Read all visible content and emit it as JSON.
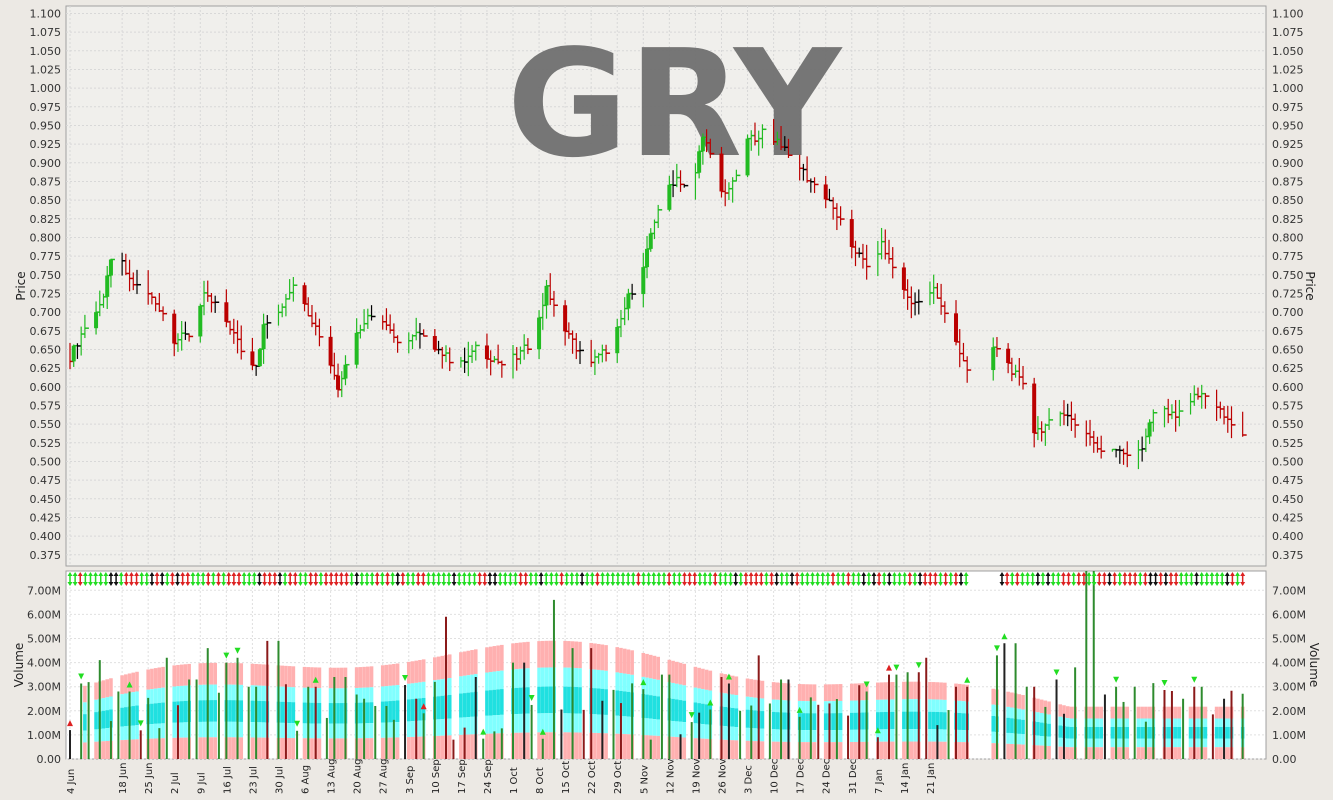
{
  "chart_data": [
    {
      "type": "ohlc",
      "title": "GRY",
      "ylabel": "Price",
      "ylim": [
        0.36,
        1.11
      ],
      "yticks": [
        "0.375",
        "0.400",
        "0.425",
        "0.450",
        "0.475",
        "0.500",
        "0.525",
        "0.550",
        "0.575",
        "0.600",
        "0.625",
        "0.650",
        "0.675",
        "0.700",
        "0.725",
        "0.750",
        "0.775",
        "0.800",
        "0.825",
        "0.850",
        "0.875",
        "0.900",
        "0.925",
        "0.950",
        "0.975",
        "1.000",
        "1.025",
        "1.050",
        "1.075",
        "1.100"
      ],
      "grid": true,
      "close_path": [
        [
          0,
          0.64
        ],
        [
          4,
          0.68
        ],
        [
          9,
          0.72
        ],
        [
          12,
          0.79
        ],
        [
          16,
          0.74
        ],
        [
          20,
          0.73
        ],
        [
          25,
          0.7
        ],
        [
          27,
          0.66
        ],
        [
          32,
          0.67
        ],
        [
          36,
          0.72
        ],
        [
          39,
          0.71
        ],
        [
          43,
          0.68
        ],
        [
          47,
          0.64
        ],
        [
          50,
          0.63
        ],
        [
          52,
          0.68
        ],
        [
          56,
          0.7
        ],
        [
          61,
          0.75
        ],
        [
          64,
          0.7
        ],
        [
          68,
          0.66
        ],
        [
          72,
          0.6
        ],
        [
          75,
          0.65
        ],
        [
          79,
          0.69
        ],
        [
          83,
          0.7
        ],
        [
          88,
          0.66
        ],
        [
          93,
          0.67
        ],
        [
          97,
          0.66
        ],
        [
          101,
          0.64
        ],
        [
          105,
          0.63
        ],
        [
          109,
          0.65
        ],
        [
          113,
          0.64
        ],
        [
          116,
          0.63
        ],
        [
          120,
          0.64
        ],
        [
          124,
          0.66
        ],
        [
          128,
          0.73
        ],
        [
          131,
          0.7
        ],
        [
          135,
          0.66
        ],
        [
          139,
          0.63
        ],
        [
          142,
          0.64
        ],
        [
          146,
          0.66
        ],
        [
          150,
          0.72
        ],
        [
          154,
          0.76
        ],
        [
          159,
          0.86
        ],
        [
          163,
          0.88
        ],
        [
          167,
          0.86
        ],
        [
          170,
          0.94
        ],
        [
          175,
          0.86
        ],
        [
          178,
          0.87
        ],
        [
          182,
          0.93
        ],
        [
          186,
          0.94
        ],
        [
          190,
          0.93
        ],
        [
          194,
          0.91
        ],
        [
          198,
          0.88
        ],
        [
          202,
          0.86
        ],
        [
          206,
          0.83
        ],
        [
          210,
          0.79
        ],
        [
          214,
          0.76
        ],
        [
          218,
          0.79
        ],
        [
          221,
          0.76
        ],
        [
          225,
          0.72
        ],
        [
          228,
          0.71
        ],
        [
          232,
          0.73
        ],
        [
          234,
          0.71
        ],
        [
          241,
          0.62
        ],
        [
          245,
          0.66
        ],
        [
          249,
          0.65
        ],
        [
          252,
          0.63
        ],
        [
          256,
          0.6
        ],
        [
          259,
          0.54
        ],
        [
          263,
          0.55
        ],
        [
          266,
          0.57
        ],
        [
          270,
          0.55
        ],
        [
          273,
          0.54
        ],
        [
          277,
          0.51
        ],
        [
          281,
          0.52
        ],
        [
          284,
          0.51
        ],
        [
          288,
          0.52
        ],
        [
          292,
          0.58
        ],
        [
          296,
          0.56
        ],
        [
          300,
          0.58
        ],
        [
          304,
          0.59
        ],
        [
          308,
          0.57
        ],
        [
          312,
          0.55
        ],
        [
          315,
          0.53
        ]
      ],
      "x_tick_labels": [
        "4 Jun",
        "18 Jun",
        "25 Jun",
        "2 Jul",
        "9 Jul",
        "16 Jul",
        "23 Jul",
        "30 Jul",
        "6 Aug",
        "13 Aug",
        "20 Aug",
        "27 Aug",
        "3 Sep",
        "10 Sep",
        "17 Sep",
        "24 Sep",
        "1 Oct",
        "8 Oct",
        "15 Oct",
        "22 Oct",
        "29 Oct",
        "5 Nov",
        "12 Nov",
        "19 Nov",
        "26 Nov",
        "3 Dec",
        "10 Dec",
        "17 Dec",
        "24 Dec",
        "31 Dec",
        "7 Jan",
        "14 Jan",
        "21 Jan"
      ],
      "x_tick_days": [
        0,
        14,
        21,
        28,
        35,
        42,
        49,
        56,
        63,
        70,
        77,
        84,
        91,
        98,
        105,
        112,
        119,
        126,
        133,
        140,
        147,
        154,
        161,
        168,
        175,
        182,
        189,
        196,
        203,
        210,
        217,
        224,
        231
      ],
      "colors": {
        "up": "#22bb22",
        "down": "#bb0000",
        "flat": "#000000",
        "watermark": "#707070"
      }
    },
    {
      "type": "bar",
      "ylabel": "Volume",
      "ylim": [
        0,
        7.8
      ],
      "yticks": [
        "0.00",
        "1.00M",
        "2.00M",
        "3.00M",
        "4.00M",
        "5.00M",
        "6.00M",
        "7.00M"
      ],
      "grid": true,
      "volume_peaks_millions": [
        [
          0,
          1.2
        ],
        [
          7,
          2.0
        ],
        [
          12,
          4.1
        ],
        [
          20,
          2.8
        ],
        [
          30,
          2.2
        ],
        [
          36,
          4.2
        ],
        [
          45,
          3.3
        ],
        [
          50,
          4.6
        ],
        [
          58,
          4.0
        ],
        [
          62,
          4.2
        ],
        [
          68,
          3.0
        ],
        [
          75,
          4.9
        ],
        [
          80,
          3.1
        ],
        [
          90,
          3.0
        ],
        [
          100,
          3.4
        ],
        [
          108,
          2.5
        ],
        [
          115,
          2.2
        ],
        [
          127,
          2.5
        ],
        [
          134,
          3.2
        ],
        [
          138,
          5.9
        ],
        [
          150,
          3.4
        ],
        [
          166,
          4.0
        ],
        [
          178,
          6.6
        ],
        [
          186,
          4.6
        ],
        [
          194,
          4.6
        ],
        [
          210,
          2.9
        ],
        [
          220,
          3.5
        ],
        [
          240,
          3.4
        ],
        [
          250,
          2.0
        ],
        [
          256,
          4.3
        ],
        [
          265,
          3.3
        ],
        [
          274,
          2.4
        ],
        [
          290,
          1.8
        ],
        [
          296,
          2.8
        ],
        [
          305,
          3.5
        ],
        [
          312,
          3.6
        ],
        [
          318,
          4.2
        ],
        [
          330,
          3.0
        ],
        [
          342,
          4.3
        ],
        [
          348,
          4.8
        ],
        [
          356,
          3.0
        ],
        [
          364,
          3.3
        ],
        [
          372,
          3.8
        ],
        [
          378,
          7.8
        ],
        [
          386,
          3.0
        ],
        [
          394,
          3.0
        ],
        [
          402,
          2.6
        ],
        [
          410,
          2.5
        ],
        [
          418,
          3.0
        ],
        [
          426,
          2.5
        ],
        [
          434,
          2.0
        ]
      ],
      "band_colors": {
        "outer": "#ffb0b0",
        "middle": "#80ffff",
        "inner": "#20e0e0"
      }
    }
  ],
  "labels": {
    "watermark": "GRY",
    "price_axis": "Price",
    "volume_axis": "Volume"
  }
}
